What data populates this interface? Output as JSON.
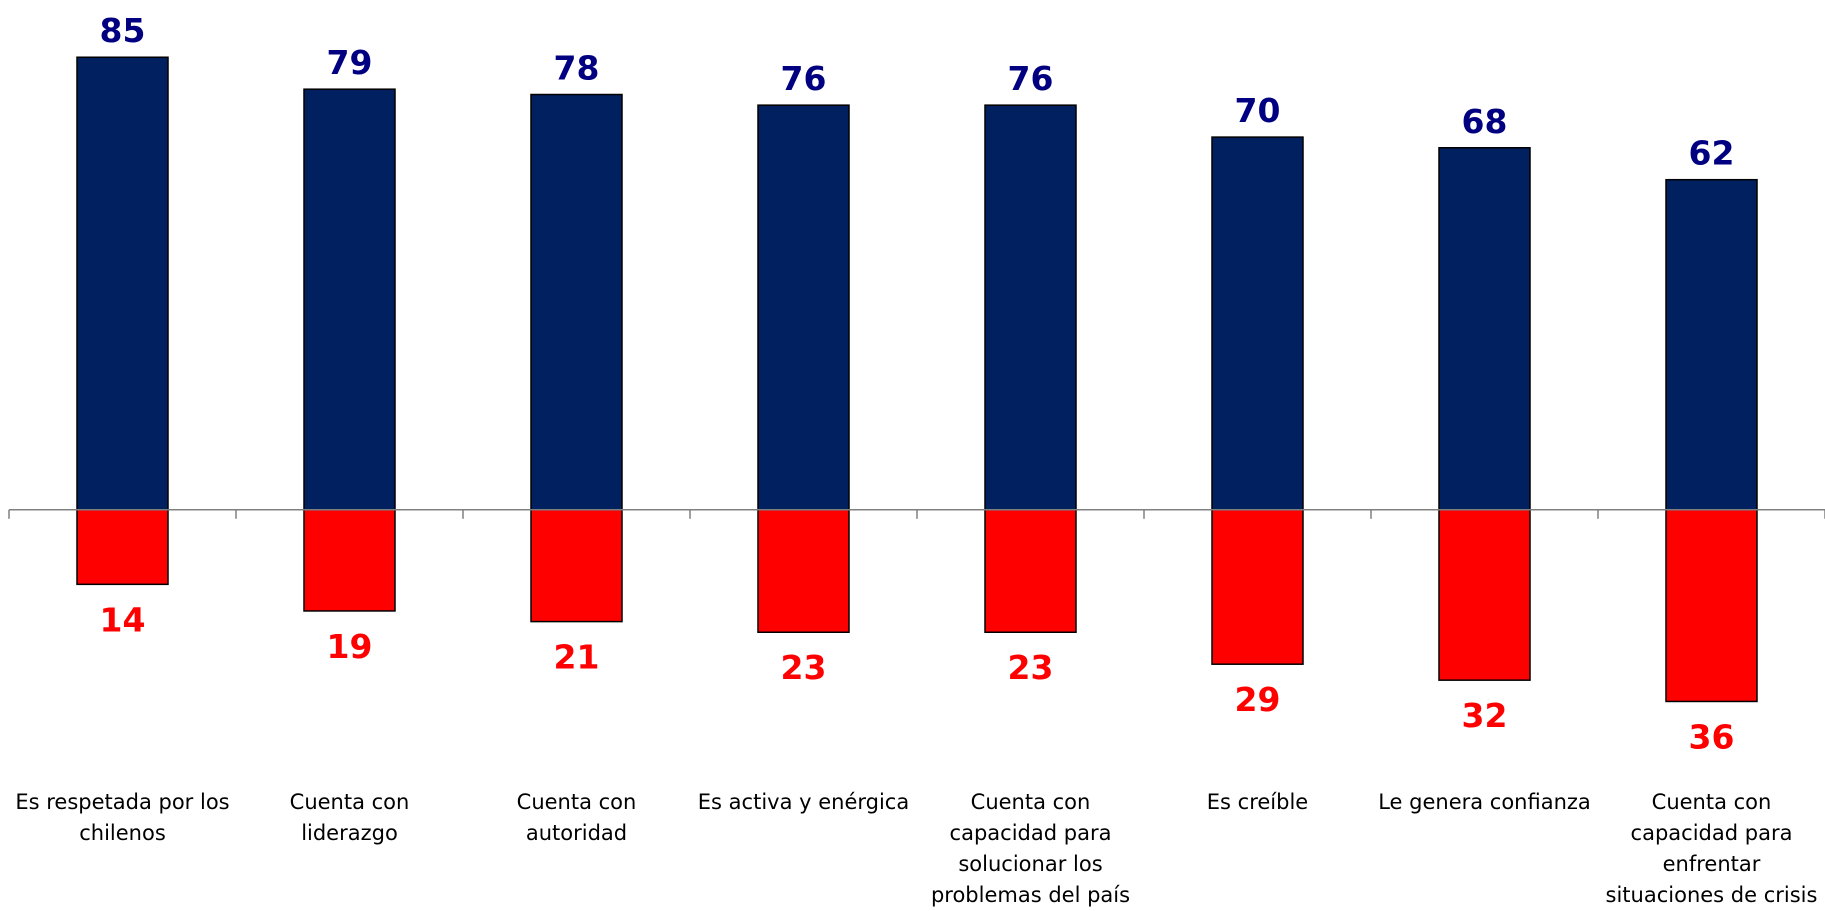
{
  "chart_data": {
    "type": "bar",
    "categories": [
      "Es respetada por los chilenos",
      "Cuenta con liderazgo",
      "Cuenta con autoridad",
      "Es activa y enérgica",
      "Cuenta con capacidad para solucionar los problemas del país",
      "Es creíble",
      "Le genera confianza",
      "Cuenta con capacidad para enfrentar situaciones de crisis"
    ],
    "series": [
      {
        "color": "#002060",
        "label_color": "#000080",
        "values": [
          85,
          79,
          78,
          76,
          76,
          70,
          68,
          62
        ]
      },
      {
        "color": "#ff0000",
        "label_color": "#ff0000",
        "values": [
          -14,
          -19,
          -21,
          -23,
          -23,
          -29,
          -32,
          -36
        ],
        "value_labels": [
          "14",
          "19",
          "21",
          "23",
          "23",
          "29",
          "32",
          "36"
        ]
      }
    ],
    "ylim": [
      -50,
      95
    ]
  }
}
